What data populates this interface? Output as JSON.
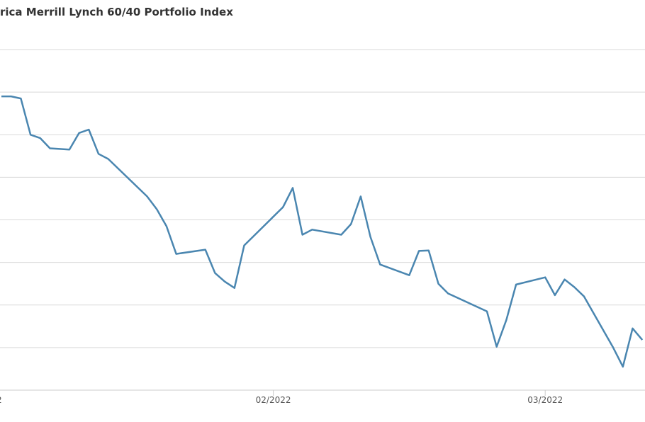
{
  "chart_data": {
    "type": "line",
    "title": "rica Merrill Lynch 60/40 Portfolio Index",
    "xlabel": "",
    "ylabel": "",
    "grid": true,
    "legend": "none",
    "x_tick_labels": [
      {
        "text": "02/2022",
        "x": 28
      },
      {
        "text": "03/2022",
        "x": 56
      }
    ],
    "line_color": "#4a86b0",
    "gridline_color": "#d9d9d9",
    "y_range": [
      0,
      8
    ],
    "series": [
      {
        "values": [
          [
            0,
            6.9
          ],
          [
            1,
            6.9
          ],
          [
            2,
            6.85
          ],
          [
            3,
            6.0
          ],
          [
            4,
            5.92
          ],
          [
            5,
            5.68
          ],
          [
            7,
            5.65
          ],
          [
            8,
            6.04
          ],
          [
            9,
            6.12
          ],
          [
            10,
            5.55
          ],
          [
            11,
            5.43
          ],
          [
            15,
            4.55
          ],
          [
            16,
            4.25
          ],
          [
            17,
            3.85
          ],
          [
            18,
            3.2
          ],
          [
            21,
            3.3
          ],
          [
            22,
            2.75
          ],
          [
            23,
            2.55
          ],
          [
            24,
            2.4
          ],
          [
            25,
            3.4
          ],
          [
            29,
            4.3
          ],
          [
            30,
            4.75
          ],
          [
            31,
            3.65
          ],
          [
            32,
            3.77
          ],
          [
            35,
            3.65
          ],
          [
            36,
            3.9
          ],
          [
            37,
            4.55
          ],
          [
            38,
            3.6
          ],
          [
            39,
            2.95
          ],
          [
            42,
            2.7
          ],
          [
            43,
            3.27
          ],
          [
            44,
            3.28
          ],
          [
            45,
            2.5
          ],
          [
            46,
            2.27
          ],
          [
            50,
            1.85
          ],
          [
            51,
            1.02
          ],
          [
            52,
            1.65
          ],
          [
            53,
            2.48
          ],
          [
            56,
            2.65
          ],
          [
            57,
            2.23
          ],
          [
            58,
            2.6
          ],
          [
            59,
            2.42
          ],
          [
            60,
            2.2
          ],
          [
            63,
            1.0
          ],
          [
            64,
            0.55
          ],
          [
            65,
            1.45
          ],
          [
            66,
            1.18
          ]
        ]
      }
    ]
  }
}
